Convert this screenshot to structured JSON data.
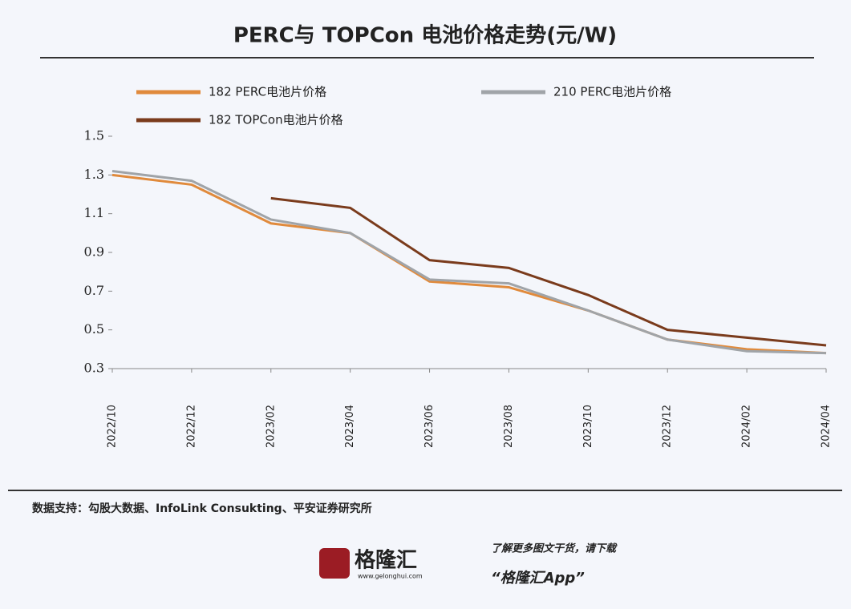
{
  "chart_data": {
    "type": "line",
    "title": "PERC与 TOPCon 电池价格走势(元/W)",
    "categories": [
      "2022/10",
      "2022/12",
      "2023/02",
      "2023/04",
      "2023/06",
      "2023/08",
      "2023/10",
      "2023/12",
      "2024/02",
      "2024/04"
    ],
    "series": [
      {
        "name": "182 PERC电池片价格",
        "color": "#e08a3c",
        "values": [
          1.3,
          1.25,
          1.05,
          1.0,
          0.75,
          0.72,
          0.6,
          0.45,
          0.4,
          0.38
        ]
      },
      {
        "name": "210 PERC电池片价格",
        "color": "#a0a4a8",
        "values": [
          1.32,
          1.27,
          1.07,
          1.0,
          0.76,
          0.74,
          0.6,
          0.45,
          0.39,
          0.38
        ]
      },
      {
        "name": "182 TOPCon电池片价格",
        "color": "#7a3b1c",
        "values": [
          null,
          null,
          1.18,
          1.13,
          0.86,
          0.82,
          0.68,
          0.5,
          0.46,
          0.42
        ]
      }
    ],
    "ylim": [
      0.3,
      1.5
    ],
    "yticks": [
      0.3,
      0.5,
      0.7,
      0.9,
      1.1,
      1.3,
      1.5
    ],
    "grid": false
  },
  "footer": {
    "source": "数据支持：勾股大数据、InfoLink Consukting、平安证券研究所",
    "brand": "格隆汇",
    "site": "www.gelonghui.com",
    "promo": "了解更多图文干货，请下载",
    "app": "“格隆汇App”"
  }
}
